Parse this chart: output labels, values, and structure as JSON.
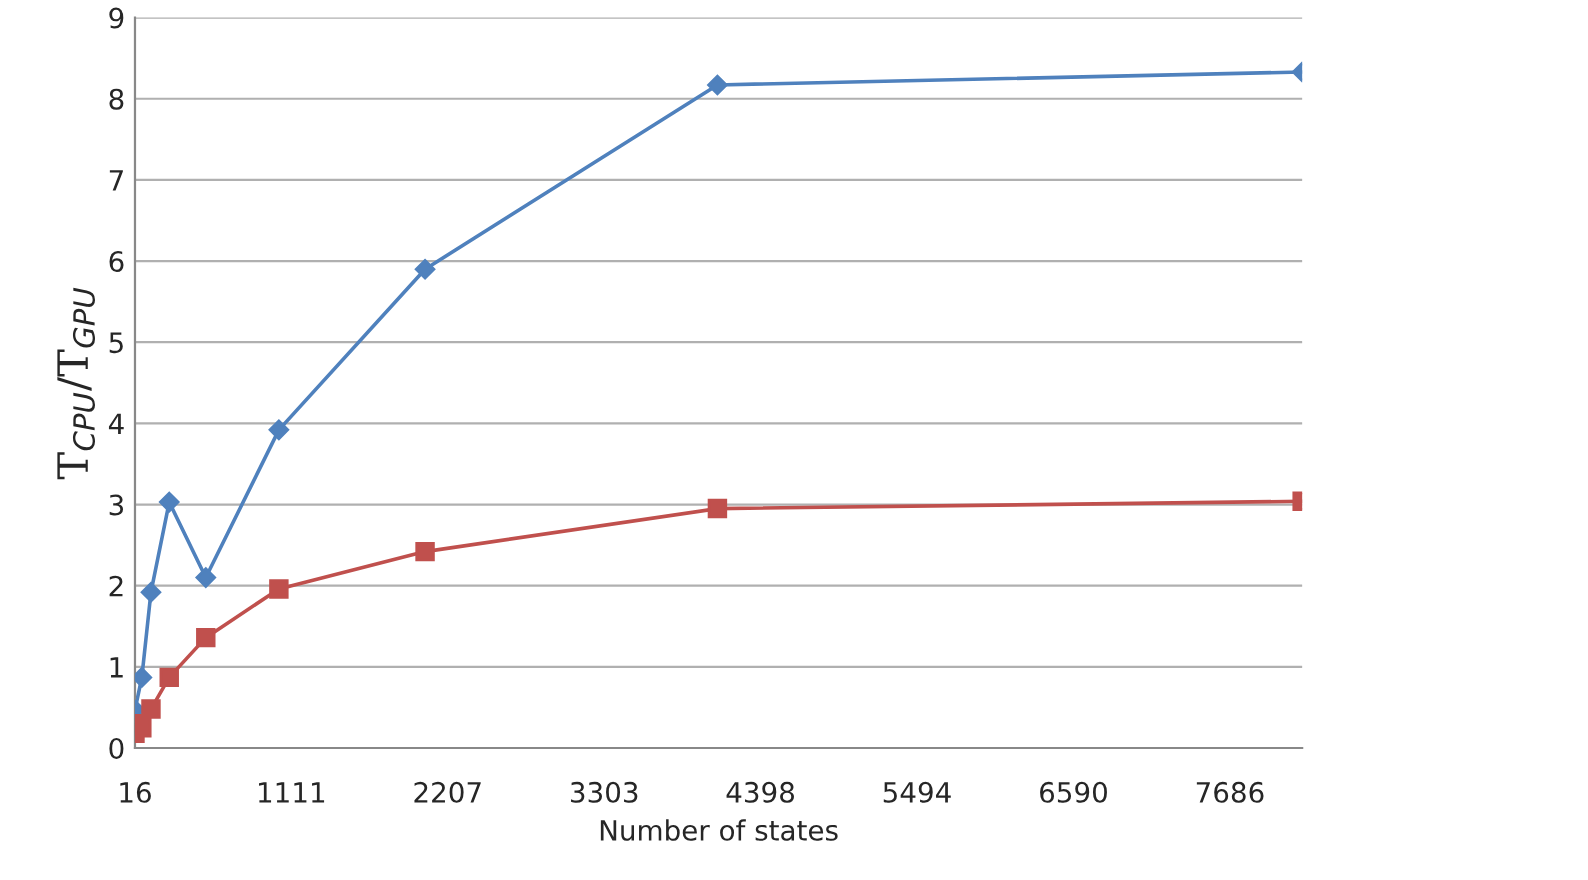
{
  "chart_data": {
    "type": "line",
    "xlabel": "Number of states",
    "ylabel": "T$_{CPU}$/T$_{GPU}$",
    "xlim": [
      16,
      8192
    ],
    "xticks": [
      16,
      1111,
      2207,
      3303,
      4398,
      5494,
      6590,
      7686
    ],
    "ylim": [
      0,
      9
    ],
    "yticks": [
      0,
      1,
      2,
      3,
      4,
      5,
      6,
      7,
      8,
      9
    ],
    "grid": "y",
    "series": [
      {
        "color": "#4f81bd",
        "marker": "diamond",
        "x": [
          16,
          64,
          128,
          256,
          512,
          1024,
          2048,
          4096,
          8192
        ],
        "values": [
          0.47,
          0.87,
          1.92,
          3.03,
          2.1,
          3.92,
          5.9,
          8.17,
          8.33
        ]
      },
      {
        "color": "#c0504d",
        "marker": "square",
        "x": [
          16,
          32,
          64,
          128,
          256,
          512,
          1024,
          2048,
          4096,
          8192
        ],
        "values": [
          0.18,
          0.3,
          0.25,
          0.48,
          0.87,
          1.36,
          1.96,
          2.42,
          2.95,
          3.04
        ]
      }
    ]
  }
}
